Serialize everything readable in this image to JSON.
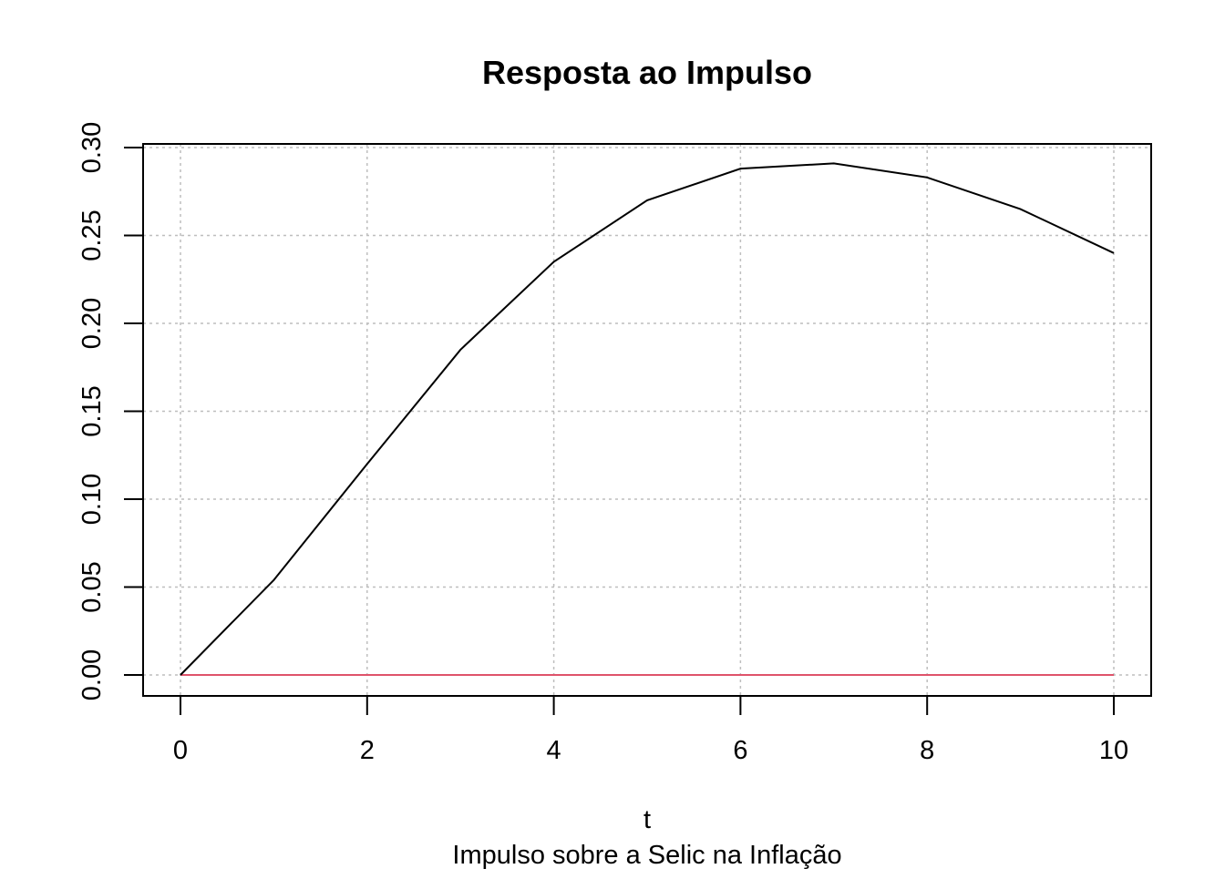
{
  "chart_data": {
    "type": "line",
    "title": "Resposta ao Impulso",
    "xlabel": "t",
    "ylabel": "",
    "subtitle": "Impulso sobre a Selic na Inflação",
    "xlim": [
      0,
      10
    ],
    "ylim": [
      0,
      0.3
    ],
    "grid": true,
    "x_ticks": [
      0,
      2,
      4,
      6,
      8,
      10
    ],
    "x_tick_labels": [
      "0",
      "2",
      "4",
      "6",
      "8",
      "10"
    ],
    "y_ticks": [
      0,
      0.05,
      0.1,
      0.15,
      0.2,
      0.25,
      0.3
    ],
    "y_tick_labels": [
      "0.00",
      "0.05",
      "0.10",
      "0.15",
      "0.20",
      "0.25",
      "0.30"
    ],
    "x": [
      0,
      1,
      2,
      3,
      4,
      5,
      6,
      7,
      8,
      9,
      10
    ],
    "series": [
      {
        "values": [
          0.0,
          0.054,
          0.12,
          0.185,
          0.235,
          0.27,
          0.288,
          0.291,
          0.283,
          0.265,
          0.24
        ],
        "color": "#000000"
      },
      {
        "values": [
          0,
          0,
          0,
          0,
          0,
          0,
          0,
          0,
          0,
          0,
          0
        ],
        "color": "#df536b"
      }
    ]
  }
}
